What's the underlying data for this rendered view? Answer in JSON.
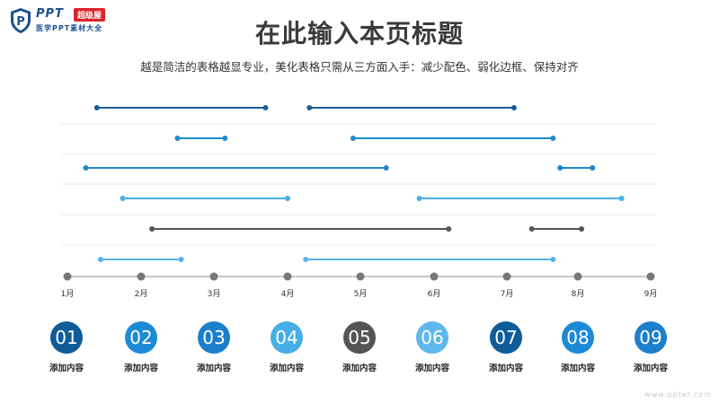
{
  "logo": {
    "brand": "PPT",
    "badge": "超级屋",
    "subtitle": "医学PPT素材大全"
  },
  "header": {
    "title": "在此输入本页标题",
    "subtitle": "越是简洁的表格越显专业，美化表格只需从三方面入手：减少配色、弱化边框、保持对齐"
  },
  "chart_data": {
    "type": "gantt",
    "axis_ticks": [
      "1月",
      "2月",
      "3月",
      "4月",
      "5月",
      "6月",
      "7月",
      "8月",
      "9月"
    ],
    "rows": [
      {
        "segments": [
          {
            "start": 1.4,
            "end": 3.7,
            "color": "#1a5e96"
          },
          {
            "start": 4.3,
            "end": 7.1,
            "color": "#1a5e96"
          }
        ]
      },
      {
        "segments": [
          {
            "start": 2.5,
            "end": 3.15,
            "color": "#1d8cd6"
          },
          {
            "start": 4.9,
            "end": 7.65,
            "color": "#1d8cd6"
          }
        ]
      },
      {
        "segments": [
          {
            "start": 1.25,
            "end": 5.35,
            "color": "#1d86c9"
          },
          {
            "start": 7.75,
            "end": 8.2,
            "color": "#1d86c9"
          }
        ]
      },
      {
        "segments": [
          {
            "start": 1.75,
            "end": 4.0,
            "color": "#46aee6"
          },
          {
            "start": 5.8,
            "end": 8.6,
            "color": "#46aee6"
          }
        ]
      },
      {
        "segments": [
          {
            "start": 2.15,
            "end": 6.2,
            "color": "#555555"
          },
          {
            "start": 7.35,
            "end": 8.05,
            "color": "#555555"
          }
        ]
      },
      {
        "segments": [
          {
            "start": 1.45,
            "end": 2.55,
            "color": "#58b4ea"
          },
          {
            "start": 4.25,
            "end": 7.65,
            "color": "#58b4ea"
          }
        ]
      }
    ]
  },
  "legend_items": [
    {
      "num": "01",
      "label": "添加内容",
      "color": "#0f5c99"
    },
    {
      "num": "02",
      "label": "添加内容",
      "color": "#1d8ad6"
    },
    {
      "num": "03",
      "label": "添加内容",
      "color": "#1b7fcc"
    },
    {
      "num": "04",
      "label": "添加内容",
      "color": "#45aee6"
    },
    {
      "num": "05",
      "label": "添加内容",
      "color": "#555555"
    },
    {
      "num": "06",
      "label": "添加内容",
      "color": "#5fb7ec"
    },
    {
      "num": "07",
      "label": "添加内容",
      "color": "#0f5c99"
    },
    {
      "num": "08",
      "label": "添加内容",
      "color": "#1d8ad6"
    },
    {
      "num": "09",
      "label": "添加内容",
      "color": "#1b7fcc"
    }
  ],
  "footer": "www.ppter.com"
}
